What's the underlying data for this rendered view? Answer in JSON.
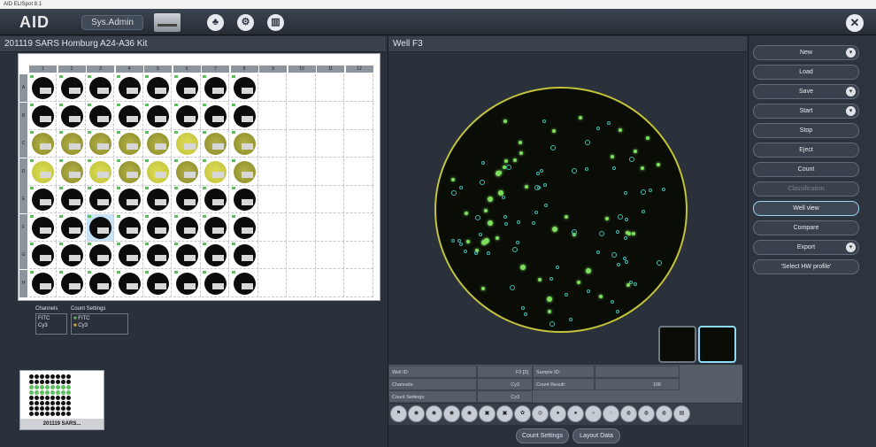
{
  "window": {
    "title": "AID ELISpot 8.1"
  },
  "topbar": {
    "logo": "AID",
    "user": "Sys.Admin"
  },
  "plate": {
    "title": "201119 SARS Homburg A24-A36 Kit",
    "columns": [
      "1",
      "2",
      "3",
      "4",
      "5",
      "6",
      "7",
      "8",
      "9",
      "10",
      "11",
      "12"
    ],
    "rows": [
      "A",
      "B",
      "C",
      "D",
      "E",
      "F",
      "G",
      "H"
    ]
  },
  "legend": {
    "channels_title": "Channels",
    "count_settings_title": "Count Settings",
    "channels": [
      "FITC",
      "Cy3"
    ],
    "count_settings": [
      "FITC",
      "Cy3"
    ]
  },
  "thumbnail": {
    "label": "201119 SARS..."
  },
  "well_view": {
    "title": "Well  F3"
  },
  "info": {
    "well_id_label": "Well ID:",
    "well_id_value": "F3 [2]",
    "sample_id_label": "Sample ID:",
    "channels_label": "Channels:",
    "channels_value": "Cy3",
    "count_result_label": "Count Result:",
    "count_result_value": "106",
    "count_settings_label": "Count Settings:",
    "count_settings_value": "Cy3"
  },
  "bottom_tabs": [
    "Count Settings",
    "Layout Data"
  ],
  "sidebar": {
    "buttons": [
      "New",
      "Load",
      "Save",
      "Start",
      "Stop",
      "Eject",
      "Count",
      "Classification",
      "Well view",
      "Compare",
      "Export",
      "'Select HW profile'"
    ]
  }
}
